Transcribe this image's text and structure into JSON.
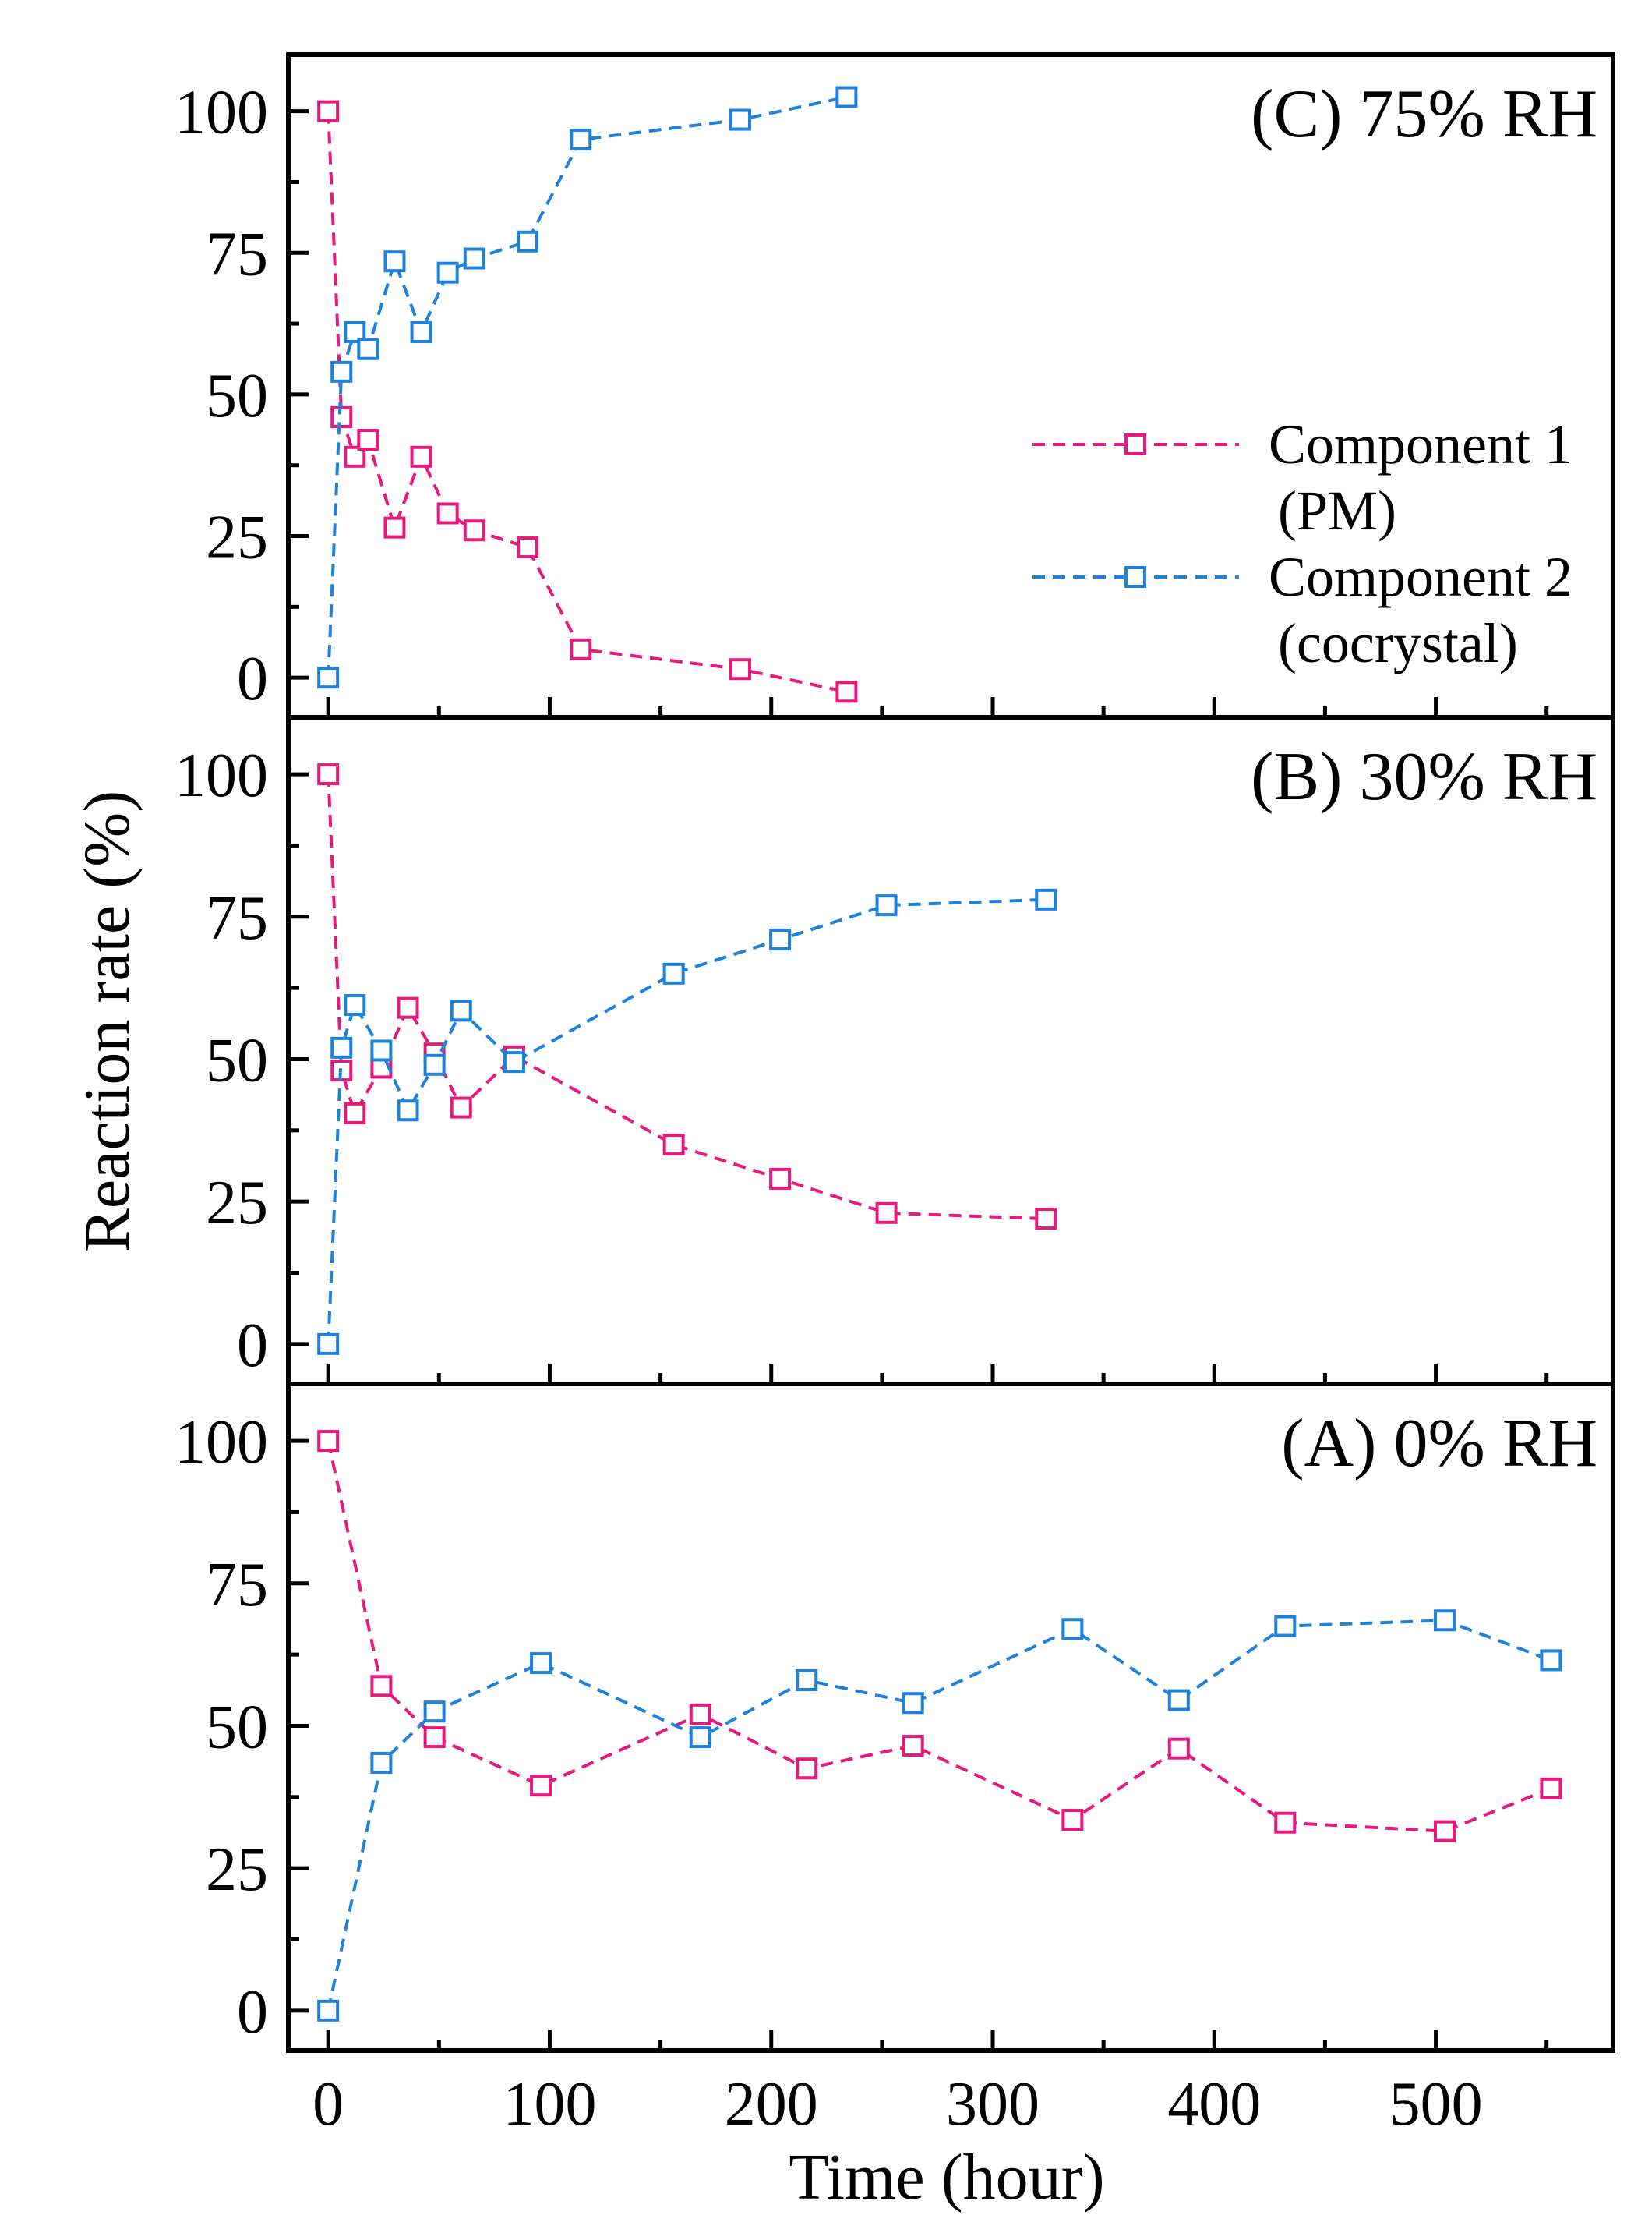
{
  "colors": {
    "component1": "#e6197d",
    "component2": "#1e82dc",
    "axis": "#000000"
  },
  "chart_data": {
    "type": "line",
    "ylabel": "Reaction rate (%)",
    "xlabel": "Time (hour)",
    "x_ticks": [
      0,
      100,
      200,
      300,
      400,
      500
    ],
    "x_tick_labels": [
      "0",
      "100",
      "200",
      "300",
      "400",
      "500"
    ],
    "xlim": [
      -18,
      580
    ],
    "ylim": [
      -7,
      110
    ],
    "y_ticks": [
      0,
      25,
      50,
      75,
      100
    ],
    "y_tick_labels": [
      "0",
      "25",
      "50",
      "75",
      "100"
    ],
    "legend": {
      "placement": "panel C, right",
      "entries": [
        {
          "line1": "Component 1",
          "line2": "(PM)"
        },
        {
          "line1": "Component 2",
          "line2": "(cocrystal)"
        }
      ]
    },
    "panels": [
      {
        "title": "(C) 75% RH",
        "series": [
          {
            "name": "Component 1 (PM)",
            "x": [
              0,
              6,
              12,
              18,
              30,
              42,
              54,
              66,
              90,
              114,
              186,
              234
            ],
            "y": [
              100,
              46,
              39,
              42,
              26.5,
              39,
              29,
              26,
              23,
              5,
              1.5,
              -2.5
            ]
          },
          {
            "name": "Component 2 (cocrystal)",
            "x": [
              0,
              6,
              12,
              18,
              30,
              42,
              54,
              66,
              90,
              114,
              186,
              234
            ],
            "y": [
              0,
              54,
              61,
              58,
              73.5,
              61,
              71.5,
              74,
              77,
              95,
              98.5,
              102.5
            ]
          }
        ]
      },
      {
        "title": "(B) 30% RH",
        "series": [
          {
            "name": "Component 1 (PM)",
            "x": [
              0,
              6,
              12,
              24,
              36,
              48,
              60,
              84,
              156,
              204,
              252,
              324
            ],
            "y": [
              100,
              48,
              40.5,
              48.5,
              59,
              51,
              41.5,
              50.5,
              35,
              29,
              23,
              22
            ]
          },
          {
            "name": "Component 2 (cocrystal)",
            "x": [
              0,
              6,
              12,
              24,
              36,
              48,
              60,
              84,
              156,
              204,
              252,
              324
            ],
            "y": [
              0,
              52,
              59.5,
              51.5,
              41,
              49,
              58.5,
              49.5,
              65,
              71,
              77,
              78
            ]
          }
        ]
      },
      {
        "title": "(A) 0% RH",
        "series": [
          {
            "name": "Component 1 (PM)",
            "x": [
              0,
              24,
              48,
              96,
              168,
              216,
              264,
              336,
              384,
              432,
              504,
              552
            ],
            "y": [
              100,
              57,
              48,
              39.5,
              52,
              42.5,
              46.5,
              33.5,
              46,
              33,
              31.5,
              39
            ]
          },
          {
            "name": "Component 2 (cocrystal)",
            "x": [
              0,
              24,
              48,
              96,
              168,
              216,
              264,
              336,
              384,
              432,
              504,
              552
            ],
            "y": [
              0,
              43.5,
              52.5,
              61,
              48,
              58,
              54,
              67,
              54.5,
              67.5,
              68.5,
              61.5
            ]
          }
        ]
      }
    ]
  }
}
